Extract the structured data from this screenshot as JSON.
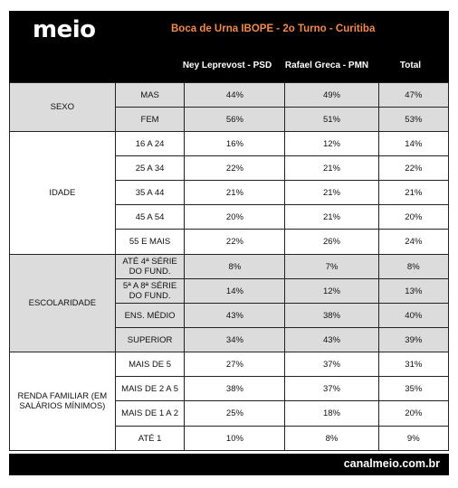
{
  "brand": "meio",
  "footer": "canalmeio.com.br",
  "chart_data": {
    "type": "table",
    "title": "Boca de Urna IBOPE - 2o Turno - Curitiba",
    "columns": [
      "Ney Leprevost - PSD",
      "Rafael Greca - PMN",
      "Total"
    ],
    "groups": [
      {
        "label": "SEXO",
        "rows": [
          {
            "label": "MAS",
            "values": [
              "44%",
              "49%",
              "47%"
            ]
          },
          {
            "label": "FEM",
            "values": [
              "56%",
              "51%",
              "53%"
            ]
          }
        ]
      },
      {
        "label": "IDADE",
        "rows": [
          {
            "label": "16 A 24",
            "values": [
              "16%",
              "12%",
              "14%"
            ]
          },
          {
            "label": "25 A 34",
            "values": [
              "22%",
              "21%",
              "22%"
            ]
          },
          {
            "label": "35 A 44",
            "values": [
              "21%",
              "21%",
              "21%"
            ]
          },
          {
            "label": "45 A 54",
            "values": [
              "20%",
              "21%",
              "20%"
            ]
          },
          {
            "label": "55 E MAIS",
            "values": [
              "22%",
              "26%",
              "24%"
            ]
          }
        ]
      },
      {
        "label": "ESCOLARIDADE",
        "rows": [
          {
            "label": "ATÉ 4ª SÉRIE DO FUND.",
            "values": [
              "8%",
              "7%",
              "8%"
            ]
          },
          {
            "label": "5ª A 8ª SÉRIE DO FUND.",
            "values": [
              "14%",
              "12%",
              "13%"
            ]
          },
          {
            "label": "ENS. MÉDIO",
            "values": [
              "43%",
              "38%",
              "40%"
            ]
          },
          {
            "label": "SUPERIOR",
            "values": [
              "34%",
              "43%",
              "39%"
            ]
          }
        ]
      },
      {
        "label": "RENDA FAMILIAR (EM SALÁRIOS MÍNIMOS)",
        "rows": [
          {
            "label": "MAIS DE 5",
            "values": [
              "27%",
              "37%",
              "31%"
            ]
          },
          {
            "label": "MAIS DE 2 A 5",
            "values": [
              "38%",
              "37%",
              "35%"
            ]
          },
          {
            "label": "MAIS DE 1 A 2",
            "values": [
              "25%",
              "18%",
              "20%"
            ]
          },
          {
            "label": "ATÉ 1",
            "values": [
              "10%",
              "8%",
              "9%"
            ]
          }
        ]
      }
    ]
  }
}
